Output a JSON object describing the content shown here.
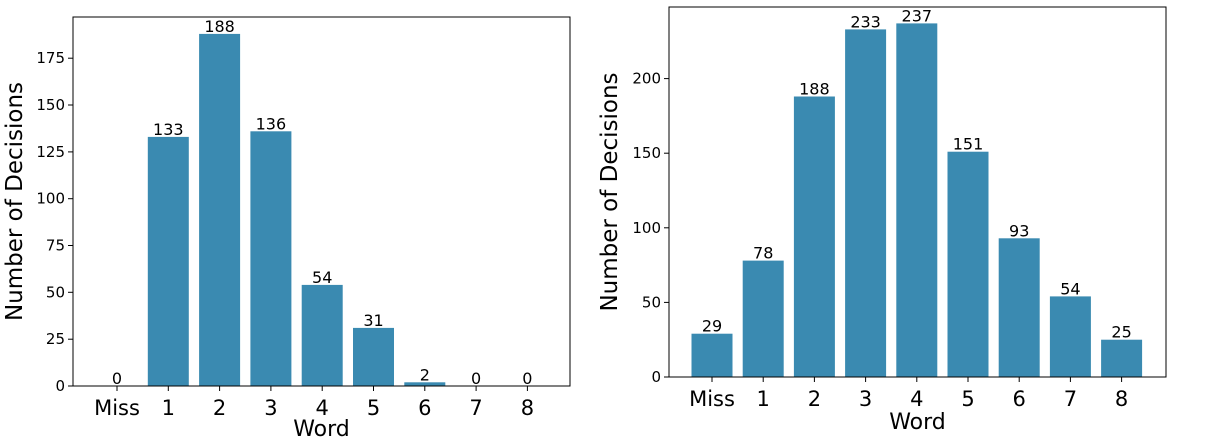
{
  "chart_data": [
    {
      "type": "bar",
      "title": "",
      "xlabel": "Word",
      "ylabel": "Number of Decisions",
      "categories": [
        "Miss",
        "1",
        "2",
        "3",
        "4",
        "5",
        "6",
        "7",
        "8"
      ],
      "values": [
        0,
        133,
        188,
        136,
        54,
        31,
        2,
        0,
        0
      ],
      "data_labels": [
        "0",
        "133",
        "188",
        "136",
        "54",
        "31",
        "2",
        "0",
        "0"
      ],
      "yticks": [
        0,
        25,
        50,
        75,
        100,
        125,
        150,
        175
      ],
      "ylim": [
        0,
        197
      ],
      "bar_color": "#3a8ab1",
      "grid": false,
      "legend": "none"
    },
    {
      "type": "bar",
      "title": "",
      "xlabel": "Word",
      "ylabel": "Number of Decisions",
      "categories": [
        "Miss",
        "1",
        "2",
        "3",
        "4",
        "5",
        "6",
        "7",
        "8"
      ],
      "values": [
        29,
        78,
        188,
        233,
        237,
        151,
        93,
        54,
        25
      ],
      "data_labels": [
        "29",
        "78",
        "188",
        "233",
        "237",
        "151",
        "93",
        "54",
        "25"
      ],
      "yticks": [
        0,
        50,
        100,
        150,
        200
      ],
      "ylim": [
        0,
        248
      ],
      "bar_color": "#3a8ab1",
      "grid": false,
      "legend": "none"
    }
  ]
}
